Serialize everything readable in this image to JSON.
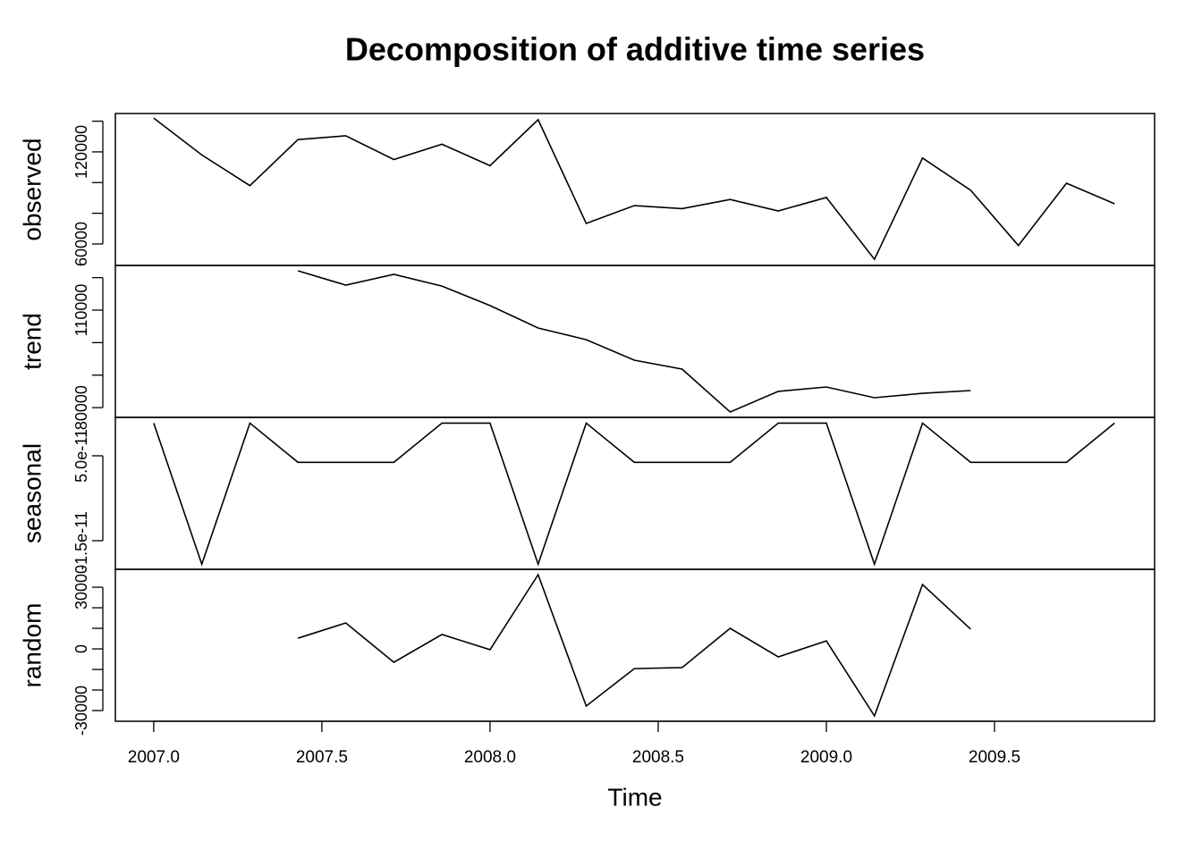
{
  "chart_data": {
    "type": "line",
    "title": "Decomposition of additive time series",
    "x_label": "Time",
    "x": [
      2007,
      2007.143,
      2007.286,
      2007.429,
      2007.571,
      2007.714,
      2007.857,
      2008,
      2008.143,
      2008.286,
      2008.429,
      2008.571,
      2008.714,
      2008.857,
      2009,
      2009.143,
      2009.286,
      2009.429,
      2009.571,
      2009.714,
      2009.857
    ],
    "xlim": [
      2006.886,
      2009.976
    ],
    "xticks": [
      {
        "value": 2007,
        "label": "2007.0"
      },
      {
        "value": 2007.5,
        "label": "2007.5"
      },
      {
        "value": 2008,
        "label": "2008.0"
      },
      {
        "value": 2008.5,
        "label": "2008.5"
      },
      {
        "value": 2009,
        "label": "2009.0"
      },
      {
        "value": 2009.5,
        "label": "2009.5"
      }
    ],
    "color": "#000000",
    "panels": [
      {
        "ylabel": "observed",
        "values": [
          142000,
          118000,
          98000,
          128000,
          130500,
          115000,
          125000,
          111000,
          141000,
          73400,
          85000,
          83000,
          89000,
          81500,
          90300,
          50000,
          116000,
          95000,
          59000,
          99600,
          86200
        ],
        "ylim": [
          46000,
          145000
        ],
        "yticks": [
          60000,
          {
            "value": 80000
          },
          {
            "value": 100000
          },
          120000,
          {
            "value": 140000
          }
        ]
      },
      {
        "ylabel": "trend",
        "values": [
          null,
          null,
          null,
          122100,
          117700,
          121000,
          117400,
          111400,
          104500,
          100900,
          94600,
          91850,
          78650,
          85000,
          86350,
          83050,
          84400,
          85250,
          null,
          null,
          null
        ],
        "ylim": [
          77000,
          123750
        ],
        "yticks": [
          80000,
          {
            "value": 90000
          },
          {
            "value": 100000
          },
          110000,
          {
            "value": 120000
          }
        ]
      },
      {
        "ylabel": "seasonal",
        "values": [
          7.5e-11,
          -3.3e-11,
          7.5e-11,
          4.5e-11,
          4.5e-11,
          4.5e-11,
          7.5e-11,
          7.5e-11,
          -3.3e-11,
          7.5e-11,
          4.5e-11,
          4.5e-11,
          4.5e-11,
          7.5e-11,
          7.5e-11,
          -3.3e-11,
          7.5e-11,
          4.5e-11,
          4.5e-11,
          4.5e-11,
          7.5e-11
        ],
        "ylim": [
          -3.69e-11,
          7.94e-11
        ],
        "yticks": [
          {
            "value": -1.5e-11,
            "label": "-1.5e-11"
          },
          {
            "value": 5e-11,
            "label": "5.0e-11"
          }
        ]
      },
      {
        "ylabel": "random",
        "values": [
          null,
          null,
          null,
          5200,
          12600,
          -6500,
          7000,
          -400,
          36100,
          -27800,
          -9600,
          -9100,
          10000,
          -3900,
          3900,
          -32600,
          31300,
          9600,
          null,
          null,
          null
        ],
        "ylim": [
          -35200,
          38700
        ],
        "yticks": [
          -30000,
          {
            "value": -20000
          },
          {
            "value": -10000
          },
          0,
          {
            "value": 10000
          },
          {
            "value": 20000
          },
          30000
        ]
      }
    ]
  }
}
